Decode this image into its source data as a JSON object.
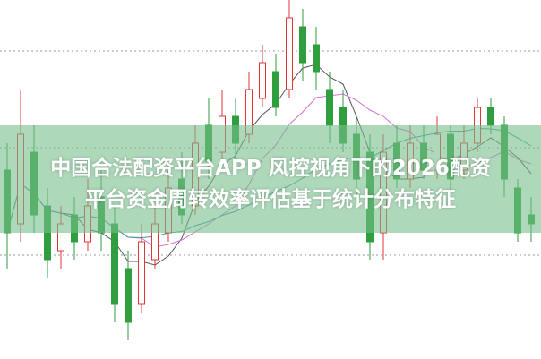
{
  "title_line1": "中国合法配资平台APP 风控视角下的2026配资",
  "title_line2": "平台资金周转效率评估基于统计分布特征",
  "colors": {
    "up": "#e0343a",
    "down": "#2e9e3e",
    "banner": "#78be8c",
    "ma_short": "#555555",
    "ma_mid": "#d070d0",
    "ma_long": "#3a9a9a"
  },
  "chart_data": {
    "type": "candlestick",
    "title": "",
    "grid": "dotted horizontal",
    "candles": [
      [
        210,
        240,
        100,
        140
      ],
      [
        150,
        300,
        130,
        250
      ],
      [
        230,
        260,
        140,
        160
      ],
      [
        170,
        190,
        90,
        110
      ],
      [
        120,
        170,
        100,
        150
      ],
      [
        160,
        180,
        110,
        130
      ],
      [
        130,
        200,
        120,
        170
      ],
      [
        180,
        210,
        120,
        140
      ],
      [
        150,
        170,
        40,
        60
      ],
      [
        100,
        120,
        20,
        40
      ],
      [
        60,
        150,
        50,
        130
      ],
      [
        110,
        170,
        100,
        150
      ],
      [
        140,
        210,
        130,
        190
      ],
      [
        200,
        230,
        150,
        160
      ],
      [
        170,
        260,
        160,
        240
      ],
      [
        260,
        290,
        200,
        220
      ],
      [
        230,
        300,
        220,
        270
      ],
      [
        270,
        290,
        220,
        240
      ],
      [
        250,
        320,
        240,
        300
      ],
      [
        290,
        350,
        280,
        330
      ],
      [
        320,
        340,
        270,
        280
      ],
      [
        300,
        400,
        290,
        380
      ],
      [
        370,
        390,
        310,
        330
      ],
      [
        350,
        370,
        300,
        320
      ],
      [
        300,
        320,
        240,
        260
      ],
      [
        280,
        300,
        230,
        240
      ],
      [
        250,
        270,
        180,
        200
      ],
      [
        230,
        250,
        110,
        130
      ],
      [
        140,
        250,
        110,
        230
      ],
      [
        240,
        260,
        190,
        200
      ],
      [
        200,
        260,
        190,
        240
      ],
      [
        240,
        260,
        200,
        210
      ],
      [
        210,
        270,
        200,
        250
      ],
      [
        250,
        260,
        180,
        200
      ],
      [
        210,
        260,
        200,
        240
      ],
      [
        240,
        290,
        230,
        280
      ],
      [
        280,
        290,
        250,
        260
      ],
      [
        260,
        270,
        180,
        200
      ],
      [
        190,
        200,
        130,
        140
      ],
      [
        160,
        180,
        130,
        150
      ]
    ],
    "candle_fields": [
      "open",
      "high",
      "low",
      "close"
    ],
    "moving_averages": [
      5,
      10,
      20
    ]
  }
}
